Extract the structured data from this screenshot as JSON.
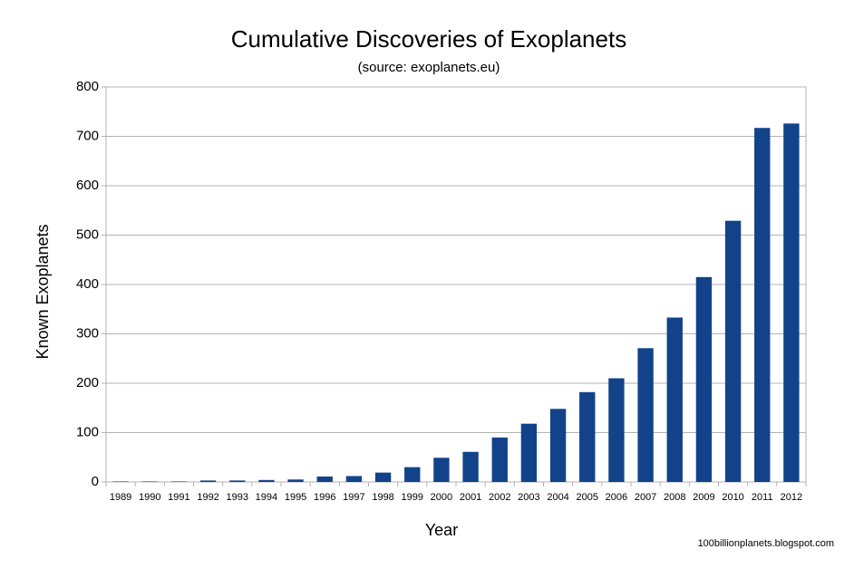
{
  "chart_data": {
    "type": "bar",
    "title": "Cumulative Discoveries of Exoplanets",
    "subtitle": "(source: exoplanets.eu)",
    "x_label": "Year",
    "y_label": "Known Exoplanets",
    "footer": "100billionplanets.blogspot.com",
    "categories": [
      "1989",
      "1990",
      "1991",
      "1992",
      "1993",
      "1994",
      "1995",
      "1996",
      "1997",
      "1998",
      "1999",
      "2000",
      "2001",
      "2002",
      "2003",
      "2004",
      "2005",
      "2006",
      "2007",
      "2008",
      "2009",
      "2010",
      "2011",
      "2012"
    ],
    "values": [
      1,
      1,
      1,
      3,
      3,
      4,
      5,
      11,
      12,
      19,
      30,
      49,
      61,
      90,
      118,
      148,
      182,
      210,
      271,
      333,
      415,
      529,
      717,
      726
    ],
    "color": "#12438a",
    "ylim": [
      0,
      800
    ],
    "yticks": [
      0,
      100,
      200,
      300,
      400,
      500,
      600,
      700,
      800
    ],
    "grid": true
  }
}
